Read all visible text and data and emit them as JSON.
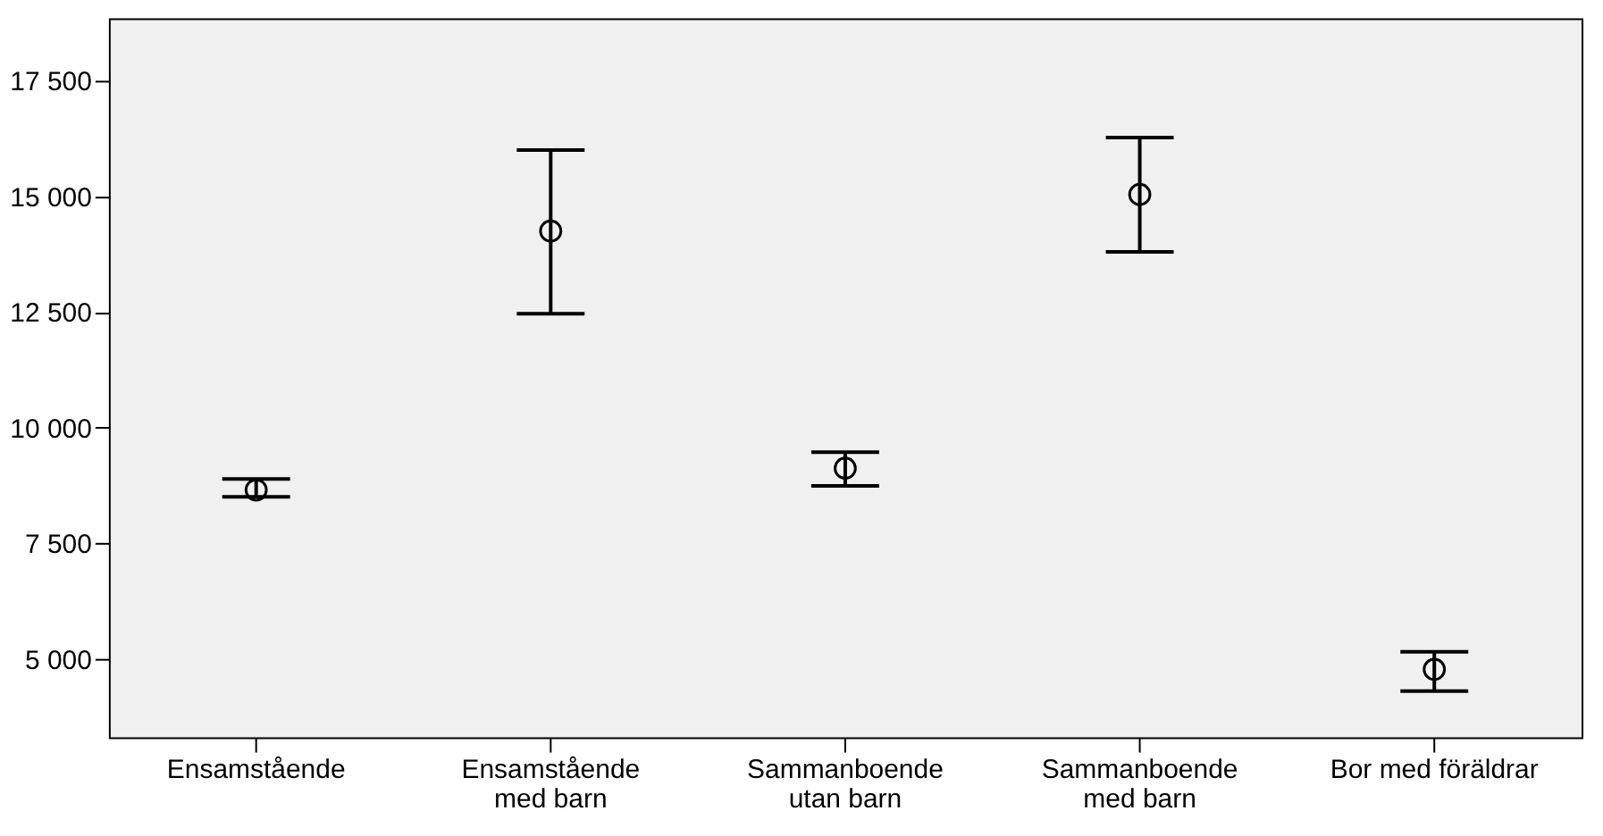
{
  "chart_data": {
    "type": "scatter",
    "categories": [
      "Ensamstående",
      "Ensamstående\nmed barn",
      "Sammanboende\nutan barn",
      "Sammanboende\nmed barn",
      "Bor med föräldrar"
    ],
    "series": [
      {
        "color": "#000000",
        "values": [
          8650,
          14250,
          9120,
          15040,
          4770
        ],
        "errors": [
          [
            8500,
            8890
          ],
          [
            12460,
            16000
          ],
          [
            8740,
            9470
          ],
          [
            13800,
            16270
          ],
          [
            4300,
            5150
          ]
        ]
      }
    ],
    "marker": "circle",
    "ylim": [
      3300,
      18850
    ],
    "yticks": [
      {
        "value": 5000,
        "label": "5 000"
      },
      {
        "value": 7500,
        "label": "7 500"
      },
      {
        "value": 10000,
        "label": "10 000"
      },
      {
        "value": 12500,
        "label": "12 500"
      },
      {
        "value": 15000,
        "label": "15 000"
      },
      {
        "value": 17500,
        "label": "17 500"
      }
    ],
    "grid": false
  }
}
